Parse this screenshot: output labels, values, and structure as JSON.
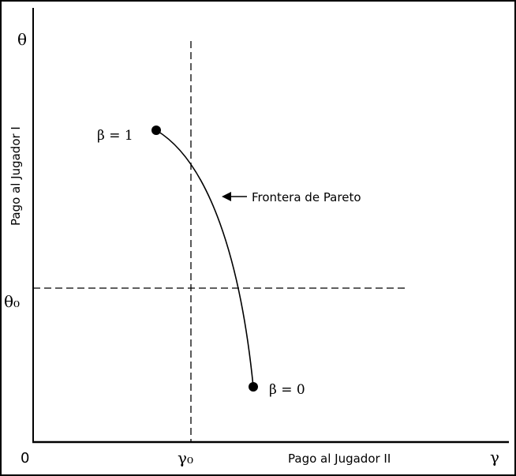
{
  "symbols": {
    "theta": "θ",
    "theta0": "θ₀",
    "gamma": "γ",
    "gamma0": "γ₀",
    "origin": "0"
  },
  "axes": {
    "y_label": "Pago al Jugador I",
    "x_label": "Pago al Jugador II"
  },
  "points": {
    "beta_one": "β = 1",
    "beta_zero": "β = 0"
  },
  "annotation": {
    "frontier": "Frontera de Pareto"
  },
  "colors": {
    "ink": "#000000",
    "background": "#ffffff"
  }
}
